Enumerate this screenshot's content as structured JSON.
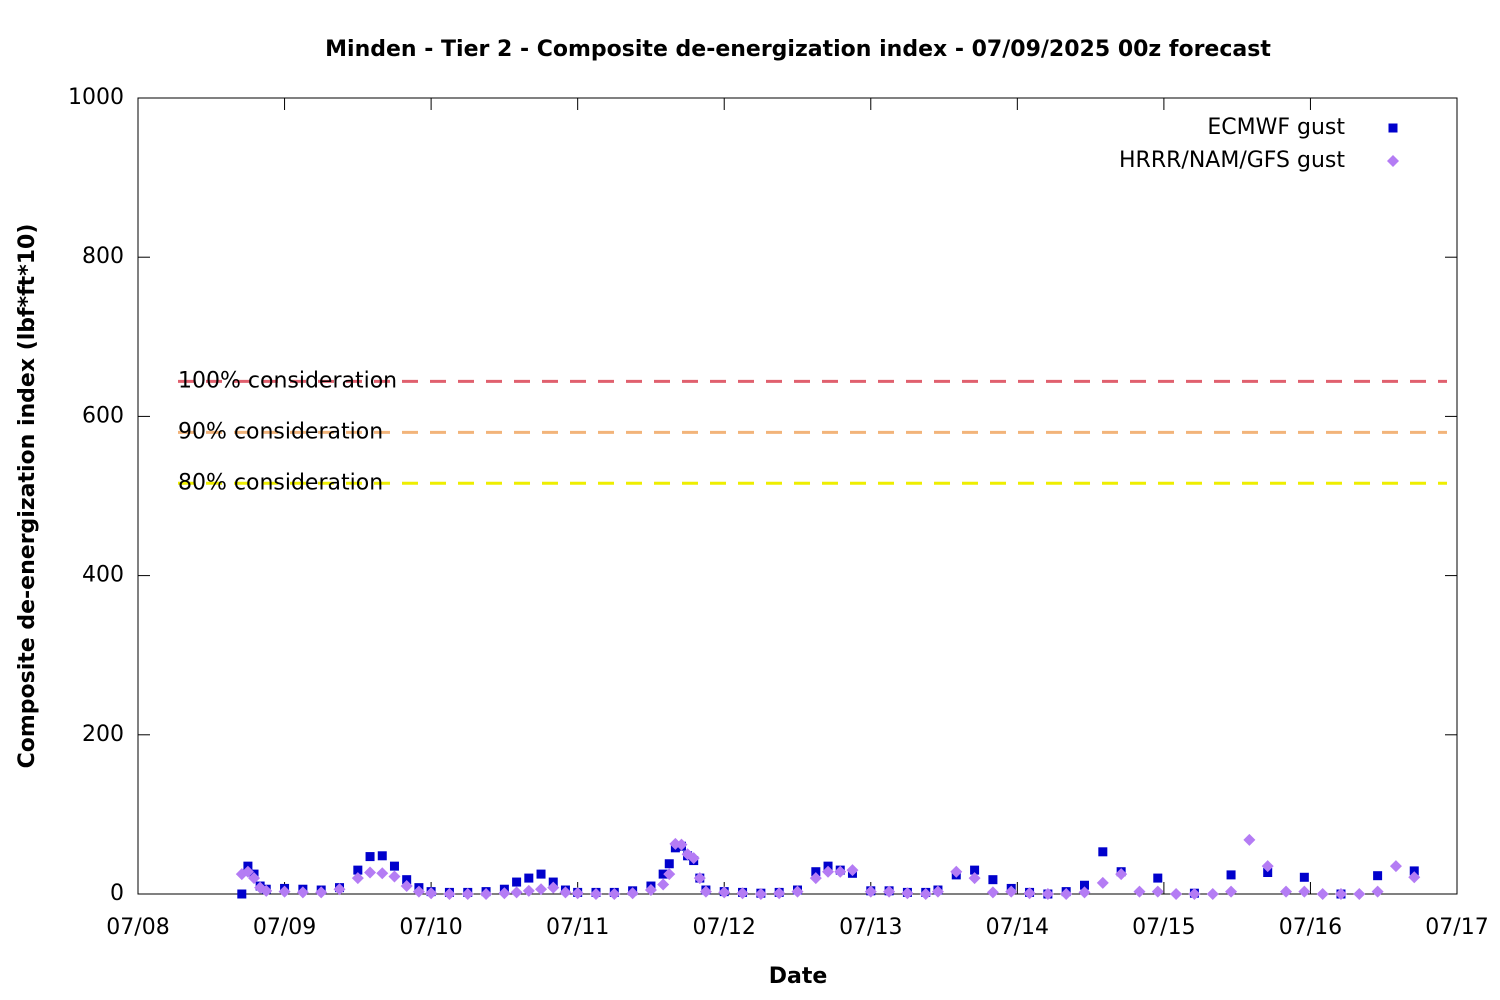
{
  "chart_data": {
    "type": "scatter",
    "title": "Minden - Tier 2 - Composite de-energization index - 07/09/2025 00z forecast",
    "x_label": "Date",
    "y_label": "Composite de-energization index (lbf*ft*10)",
    "xlim": [
      0,
      216
    ],
    "xticks": [
      {
        "value": 0,
        "label": "07/08"
      },
      {
        "value": 24,
        "label": "07/09"
      },
      {
        "value": 48,
        "label": "07/10"
      },
      {
        "value": 72,
        "label": "07/11"
      },
      {
        "value": 96,
        "label": "07/12"
      },
      {
        "value": 120,
        "label": "07/13"
      },
      {
        "value": 144,
        "label": "07/14"
      },
      {
        "value": 168,
        "label": "07/15"
      },
      {
        "value": 192,
        "label": "07/16"
      },
      {
        "value": 216,
        "label": "07/17"
      }
    ],
    "ylim": [
      0,
      1000
    ],
    "yticks": [
      0,
      200,
      400,
      600,
      800,
      1000
    ],
    "legend": "top-right",
    "thresholds": [
      {
        "label": "100% consideration",
        "value": 644,
        "color": "#e0606e"
      },
      {
        "label": "90% consideration",
        "value": 580,
        "color": "#f2b47a"
      },
      {
        "label": "80% consideration",
        "value": 516,
        "color": "#eeee00"
      }
    ],
    "series": [
      {
        "name": "ECMWF gust",
        "color": "#0000cc",
        "marker": "square",
        "x": [
          17,
          18,
          19,
          20,
          21,
          24,
          27,
          30,
          33,
          36,
          38,
          40,
          42,
          44,
          46,
          48,
          51,
          54,
          57,
          60,
          62,
          64,
          66,
          68,
          70,
          72,
          75,
          78,
          81,
          84,
          86,
          87,
          88,
          89,
          90,
          91,
          92,
          93,
          96,
          99,
          102,
          105,
          108,
          111,
          113,
          115,
          117,
          120,
          123,
          126,
          129,
          131,
          134,
          137,
          140,
          143,
          146,
          149,
          152,
          155,
          158,
          161,
          167,
          173,
          179,
          185,
          191,
          197,
          203,
          209
        ],
        "values": [
          0,
          35,
          25,
          10,
          6,
          7,
          6,
          5,
          8,
          30,
          47,
          48,
          35,
          18,
          8,
          3,
          2,
          2,
          3,
          6,
          15,
          20,
          25,
          15,
          5,
          2,
          2,
          2,
          4,
          10,
          25,
          38,
          58,
          60,
          48,
          42,
          20,
          5,
          3,
          2,
          1,
          2,
          5,
          28,
          35,
          30,
          26,
          4,
          4,
          2,
          2,
          5,
          24,
          30,
          18,
          7,
          2,
          0,
          3,
          11,
          53,
          28,
          20,
          1,
          24,
          27,
          21,
          0,
          23,
          29
        ]
      },
      {
        "name": "HRRR/NAM/GFS gust",
        "color": "#b47cf4",
        "marker": "diamond",
        "x": [
          17,
          18,
          19,
          20,
          21,
          24,
          27,
          30,
          33,
          36,
          38,
          40,
          42,
          44,
          46,
          48,
          51,
          54,
          57,
          60,
          62,
          64,
          66,
          68,
          70,
          72,
          75,
          78,
          81,
          84,
          86,
          87,
          88,
          89,
          90,
          91,
          92,
          93,
          96,
          99,
          102,
          105,
          108,
          111,
          113,
          115,
          117,
          120,
          123,
          126,
          129,
          131,
          134,
          137,
          140,
          143,
          146,
          149,
          152,
          155,
          158,
          161,
          164,
          167,
          170,
          173,
          176,
          179,
          182,
          185,
          188,
          191,
          194,
          197,
          200,
          203,
          206,
          209
        ],
        "values": [
          25,
          28,
          20,
          8,
          4,
          3,
          2,
          2,
          6,
          20,
          27,
          26,
          22,
          10,
          3,
          1,
          0,
          0,
          0,
          1,
          2,
          4,
          6,
          8,
          2,
          1,
          0,
          0,
          1,
          5,
          12,
          25,
          63,
          62,
          50,
          45,
          20,
          3,
          2,
          1,
          0,
          1,
          3,
          20,
          28,
          28,
          30,
          3,
          3,
          1,
          0,
          3,
          28,
          20,
          2,
          3,
          1,
          0,
          0,
          2,
          14,
          25,
          3,
          3,
          0,
          0,
          0,
          3,
          68,
          35,
          3,
          3,
          0,
          0,
          0,
          3,
          35,
          21
        ]
      }
    ]
  }
}
